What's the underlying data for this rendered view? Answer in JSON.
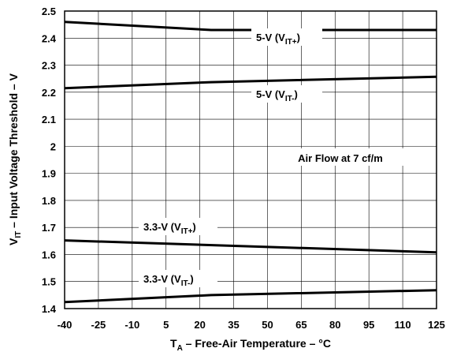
{
  "chart_data": {
    "type": "line",
    "xlabel_main": "T",
    "xlabel_sub": "A",
    "xlabel_rest": " – Free-Air Temperature – °C",
    "ylabel_main": "V",
    "ylabel_sub": "IT",
    "ylabel_rest": " – Input Voltage Threshold – V",
    "xlim": [
      -40,
      125
    ],
    "ylim": [
      1.4,
      2.5
    ],
    "xticks": [
      "-40",
      "-25",
      "-10",
      "5",
      "20",
      "35",
      "50",
      "65",
      "80",
      "95",
      "110",
      "125"
    ],
    "yticks": [
      "1.4",
      "1.5",
      "1.6",
      "1.7",
      "1.8",
      "1.9",
      "2",
      "2.1",
      "2.2",
      "2.3",
      "2.4",
      "2.5"
    ],
    "grid": true,
    "annotation": "Air Flow at 7 cf/m",
    "series": [
      {
        "label_main": "5-V (V",
        "label_sub": "IT+",
        "label_end": ")",
        "x": [
          -40,
          25,
          125
        ],
        "y": [
          2.46,
          2.43,
          2.43
        ]
      },
      {
        "label_main": "5-V (V",
        "label_sub": "IT-",
        "label_end": ")",
        "x": [
          -40,
          25,
          125
        ],
        "y": [
          2.215,
          2.237,
          2.257
        ]
      },
      {
        "label_main": "3.3-V (V",
        "label_sub": "IT+",
        "label_end": ")",
        "x": [
          -40,
          125
        ],
        "y": [
          1.652,
          1.608
        ]
      },
      {
        "label_main": "3.3-V (V",
        "label_sub": "IT-",
        "label_end": ")",
        "x": [
          -40,
          25,
          125
        ],
        "y": [
          1.424,
          1.45,
          1.468
        ]
      }
    ]
  }
}
